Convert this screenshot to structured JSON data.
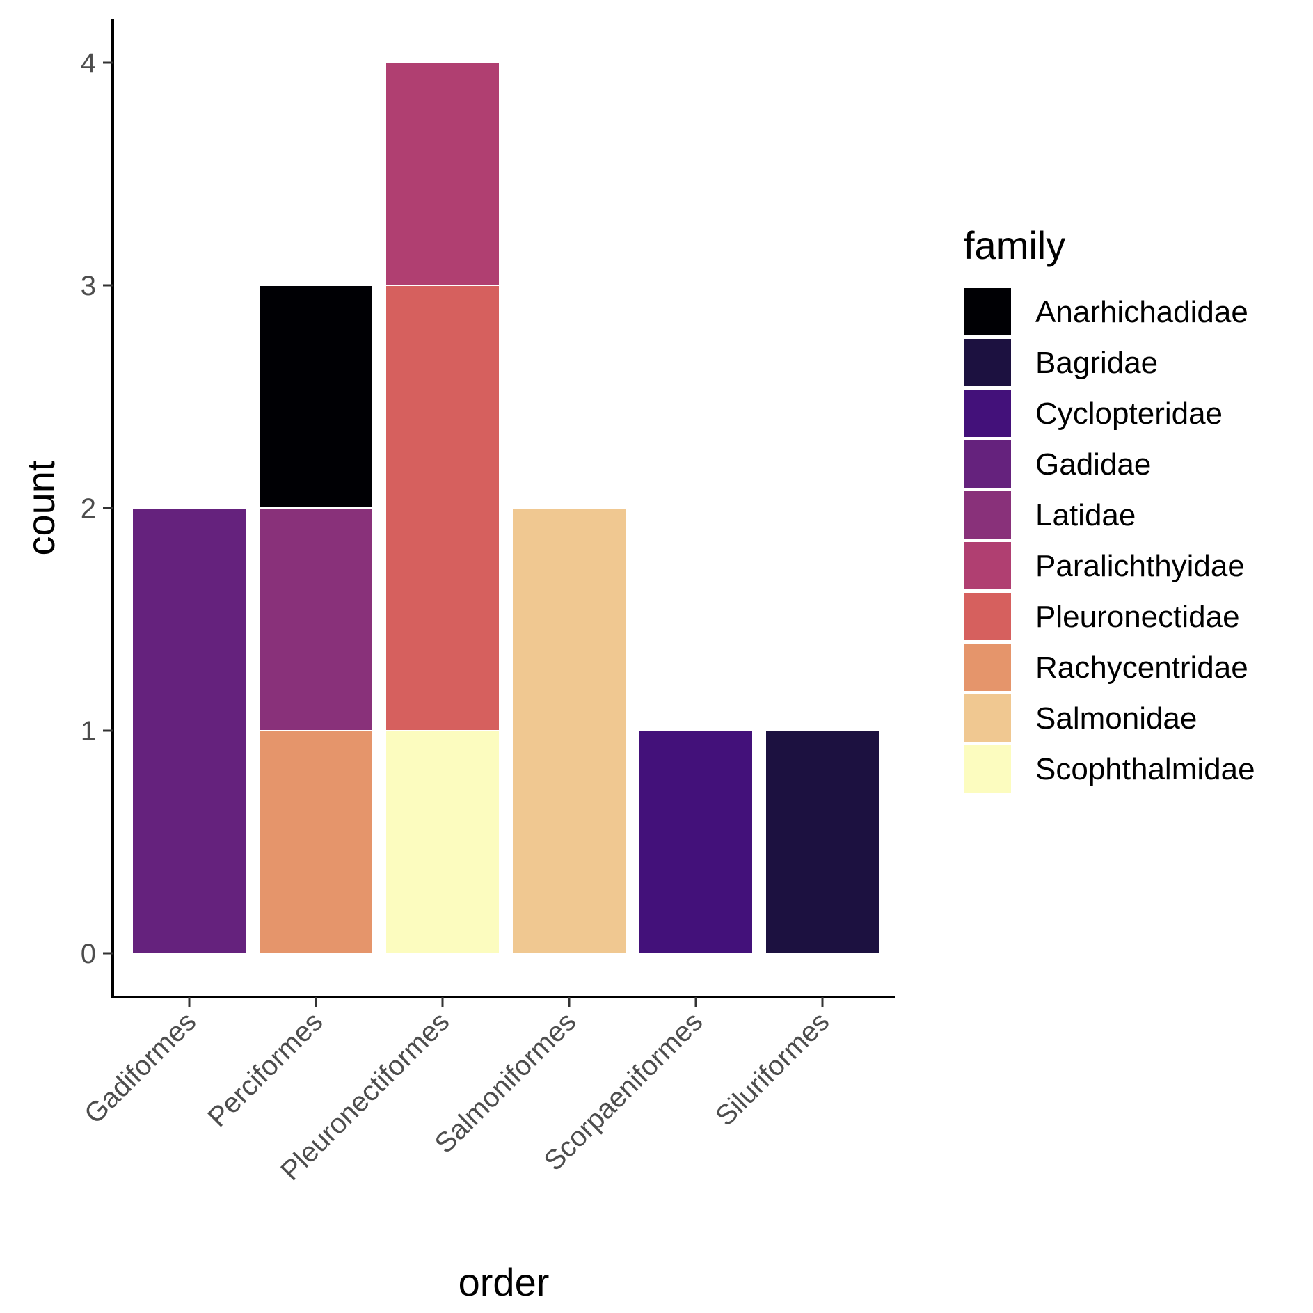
{
  "chart_data": {
    "type": "bar",
    "stacked": true,
    "xlabel": "order",
    "ylabel": "count",
    "categories": [
      "Gadiformes",
      "Perciformes",
      "Pleuronectiformes",
      "Salmoniformes",
      "Scorpaeniformes",
      "Siluriformes"
    ],
    "ylim": [
      0,
      4
    ],
    "yticks": [
      0,
      1,
      2,
      3,
      4
    ],
    "grid": false,
    "legend": {
      "title": "family",
      "position": "right",
      "entries": [
        {
          "name": "Anarhichadidae",
          "color": "#000004"
        },
        {
          "name": "Bagridae",
          "color": "#1c1140"
        },
        {
          "name": "Cyclopteridae",
          "color": "#43117a"
        },
        {
          "name": "Gadidae",
          "color": "#65227d"
        },
        {
          "name": "Latidae",
          "color": "#89317a"
        },
        {
          "name": "Paralichthyidae",
          "color": "#b03f71"
        },
        {
          "name": "Pleuronectidae",
          "color": "#d6605e"
        },
        {
          "name": "Rachycentridae",
          "color": "#e5956b"
        },
        {
          "name": "Salmonidae",
          "color": "#f0c891"
        },
        {
          "name": "Scophthalmidae",
          "color": "#fcfcbf"
        }
      ]
    },
    "series": [
      {
        "name": "Anarhichadidae",
        "values": [
          0,
          1,
          0,
          0,
          0,
          0
        ]
      },
      {
        "name": "Bagridae",
        "values": [
          0,
          0,
          0,
          0,
          0,
          1
        ]
      },
      {
        "name": "Cyclopteridae",
        "values": [
          0,
          0,
          0,
          0,
          1,
          0
        ]
      },
      {
        "name": "Gadidae",
        "values": [
          2,
          0,
          0,
          0,
          0,
          0
        ]
      },
      {
        "name": "Latidae",
        "values": [
          0,
          1,
          0,
          0,
          0,
          0
        ]
      },
      {
        "name": "Paralichthyidae",
        "values": [
          0,
          0,
          1,
          0,
          0,
          0
        ]
      },
      {
        "name": "Pleuronectidae",
        "values": [
          0,
          0,
          2,
          0,
          0,
          0
        ]
      },
      {
        "name": "Rachycentridae",
        "values": [
          0,
          1,
          0,
          0,
          0,
          0
        ]
      },
      {
        "name": "Salmonidae",
        "values": [
          0,
          0,
          0,
          2,
          0,
          0
        ]
      },
      {
        "name": "Scophthalmidae",
        "values": [
          0,
          0,
          1,
          0,
          0,
          0
        ]
      }
    ]
  }
}
